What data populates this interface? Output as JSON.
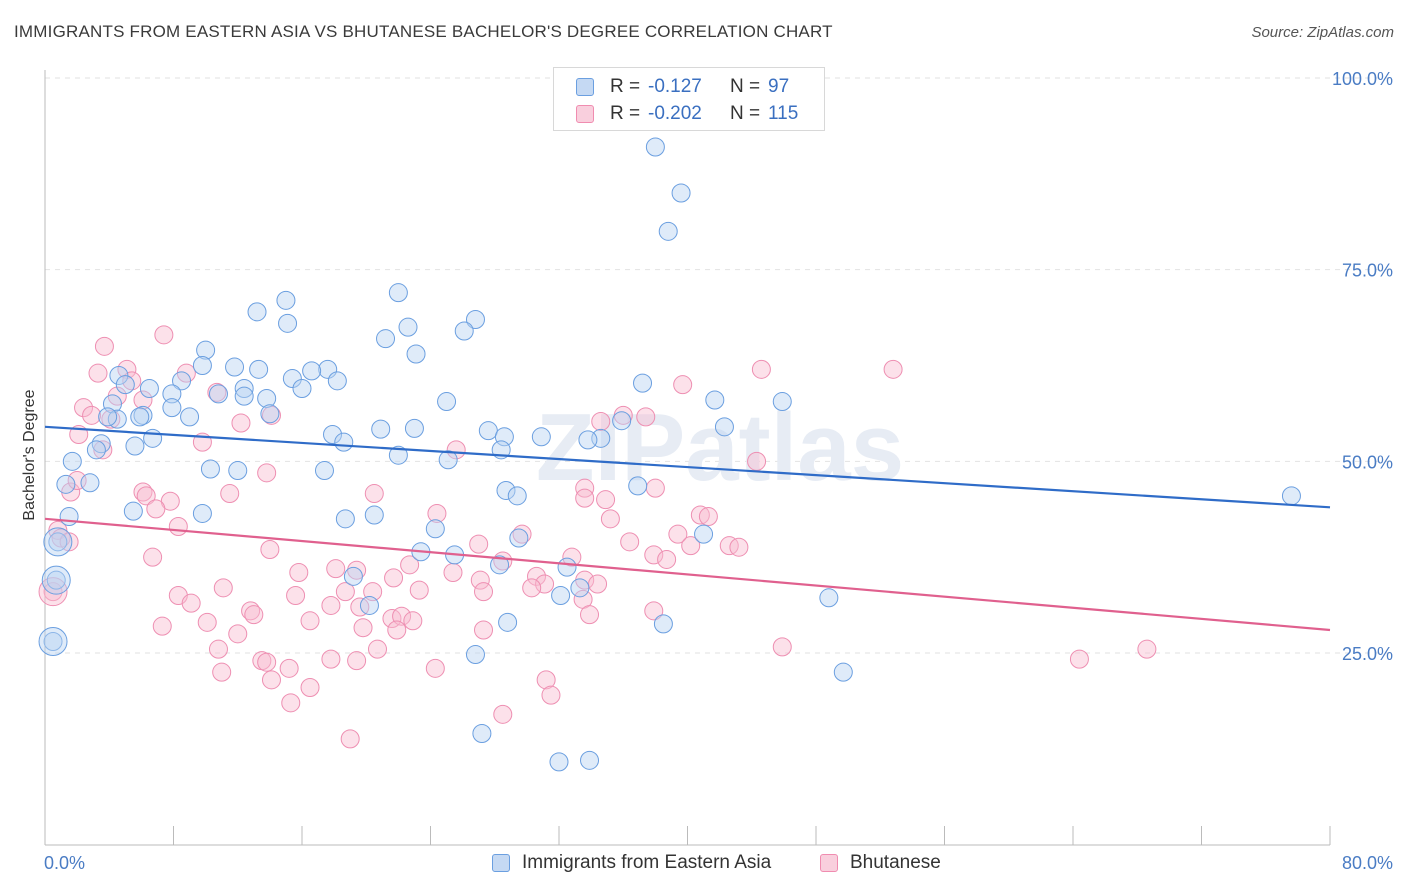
{
  "title": "IMMIGRANTS FROM EASTERN ASIA VS BHUTANESE BACHELOR'S DEGREE CORRELATION CHART",
  "source": "Source: ZipAtlas.com",
  "legend": {
    "rows": [
      {
        "r_label": "R =",
        "r_value": "-0.127",
        "n_label": "N =",
        "n_value": "97"
      },
      {
        "r_label": "R =",
        "r_value": "-0.202",
        "n_label": "N =",
        "n_value": "115"
      }
    ]
  },
  "chart_data": {
    "type": "scatter",
    "xlabel": "",
    "ylabel": "Bachelor's Degree",
    "xlim": [
      0,
      80
    ],
    "ylim": [
      0,
      105
    ],
    "x_tick_labels": [
      "0.0%",
      "80.0%"
    ],
    "y_ticks": [
      25,
      50,
      75,
      100
    ],
    "y_tick_labels": [
      "25.0%",
      "50.0%",
      "75.0%",
      "100.0%"
    ],
    "grid": true,
    "legend_placement": "bottom-center",
    "watermark": "ZIPatlas",
    "colors": {
      "series1": "#6b9fe0",
      "series1_line": "#2f6cc8",
      "series2": "#f08cb0",
      "series2_line": "#e0608e"
    },
    "series": [
      {
        "name": "Immigrants from Eastern Asia",
        "trend": [
          [
            0,
            54.5
          ],
          [
            80,
            44.0
          ]
        ],
        "points": [
          [
            38,
            91
          ],
          [
            39.6,
            85
          ],
          [
            38.8,
            80
          ],
          [
            22,
            72
          ],
          [
            15,
            71
          ],
          [
            13.2,
            69.5
          ],
          [
            26.8,
            68.5
          ],
          [
            15.1,
            68
          ],
          [
            22.6,
            67.5
          ],
          [
            26.1,
            67
          ],
          [
            21.2,
            66
          ],
          [
            10,
            64.5
          ],
          [
            23.1,
            64
          ],
          [
            9.8,
            62.5
          ],
          [
            11.8,
            62.3
          ],
          [
            13.3,
            62
          ],
          [
            17.6,
            62
          ],
          [
            16.6,
            61.8
          ],
          [
            4.6,
            61.2
          ],
          [
            15.4,
            60.8
          ],
          [
            8.5,
            60.5
          ],
          [
            18.2,
            60.5
          ],
          [
            37.2,
            60.2
          ],
          [
            5,
            60
          ],
          [
            12.4,
            59.5
          ],
          [
            16,
            59.5
          ],
          [
            6.5,
            59.5
          ],
          [
            10.8,
            58.8
          ],
          [
            7.9,
            58.8
          ],
          [
            13.8,
            58.2
          ],
          [
            12.4,
            58.5
          ],
          [
            4.2,
            57.5
          ],
          [
            45.9,
            57.8
          ],
          [
            25,
            57.8
          ],
          [
            7.9,
            57
          ],
          [
            14,
            56.2
          ],
          [
            6.1,
            56
          ],
          [
            5.9,
            55.8
          ],
          [
            9,
            55.8
          ],
          [
            4.5,
            55.5
          ],
          [
            3.9,
            55.8
          ],
          [
            42.3,
            54.5
          ],
          [
            20.9,
            54.2
          ],
          [
            23,
            54.3
          ],
          [
            27.6,
            54
          ],
          [
            17.9,
            53.5
          ],
          [
            30.9,
            53.2
          ],
          [
            28.6,
            53.2
          ],
          [
            34.6,
            53
          ],
          [
            6.7,
            53
          ],
          [
            18.6,
            52.5
          ],
          [
            3.5,
            52.3
          ],
          [
            5.6,
            52
          ],
          [
            3.2,
            51.5
          ],
          [
            28.4,
            51.5
          ],
          [
            22,
            50.8
          ],
          [
            25.1,
            50.2
          ],
          [
            1.7,
            50
          ],
          [
            10.3,
            49
          ],
          [
            12,
            48.8
          ],
          [
            17.4,
            48.8
          ],
          [
            1.3,
            47
          ],
          [
            2.8,
            47.2
          ],
          [
            36.9,
            46.8
          ],
          [
            28.7,
            46.2
          ],
          [
            29.4,
            45.5
          ],
          [
            5.5,
            43.5
          ],
          [
            9.8,
            43.2
          ],
          [
            20.5,
            43
          ],
          [
            18.7,
            42.5
          ],
          [
            1.5,
            42.8
          ],
          [
            24.3,
            41.2
          ],
          [
            41,
            40.5
          ],
          [
            29.5,
            40
          ],
          [
            0.8,
            39.5
          ],
          [
            23.4,
            38.2
          ],
          [
            25.5,
            37.8
          ],
          [
            32.5,
            36.2
          ],
          [
            28.3,
            36.5
          ],
          [
            19.2,
            35
          ],
          [
            33.3,
            33.5
          ],
          [
            0.7,
            34.5
          ],
          [
            32.1,
            32.5
          ],
          [
            48.8,
            32.2
          ],
          [
            20.2,
            31.2
          ],
          [
            28.8,
            29
          ],
          [
            38.5,
            28.8
          ],
          [
            0.5,
            26.5
          ],
          [
            26.8,
            24.8
          ],
          [
            49.7,
            22.5
          ],
          [
            27.2,
            14.5
          ],
          [
            32,
            10.8
          ],
          [
            33.9,
            11
          ],
          [
            41.7,
            58
          ],
          [
            35.9,
            55.3
          ],
          [
            77.6,
            45.5
          ],
          [
            33.8,
            52.8
          ]
        ],
        "sizes_note": "",
        "large_points": [
          [
            0.5,
            26.5
          ],
          [
            0.7,
            34.5
          ],
          [
            0.8,
            39.5
          ]
        ]
      },
      {
        "name": "Bhutanese",
        "trend": [
          [
            0,
            42.5
          ],
          [
            80,
            28.0
          ]
        ],
        "points": [
          [
            7.4,
            66.5
          ],
          [
            3.7,
            65
          ],
          [
            52.8,
            62
          ],
          [
            44.6,
            62
          ],
          [
            3.3,
            61.5
          ],
          [
            5.1,
            62
          ],
          [
            8.8,
            61.5
          ],
          [
            5.4,
            60.5
          ],
          [
            39.7,
            60
          ],
          [
            10.7,
            59
          ],
          [
            6.1,
            58
          ],
          [
            4.5,
            58.5
          ],
          [
            2.4,
            57
          ],
          [
            14.1,
            56
          ],
          [
            2.9,
            56
          ],
          [
            4.1,
            55.5
          ],
          [
            36,
            56
          ],
          [
            37.4,
            55.8
          ],
          [
            34.6,
            55.2
          ],
          [
            12.2,
            55
          ],
          [
            2.1,
            53.5
          ],
          [
            9.8,
            52.5
          ],
          [
            3.6,
            51.5
          ],
          [
            25.6,
            51.5
          ],
          [
            44.3,
            50
          ],
          [
            13.8,
            48.5
          ],
          [
            6.1,
            46
          ],
          [
            20.5,
            45.8
          ],
          [
            33.6,
            46.5
          ],
          [
            38,
            46.5
          ],
          [
            1.6,
            46
          ],
          [
            2,
            47.5
          ],
          [
            11.5,
            45.8
          ],
          [
            33.6,
            45.2
          ],
          [
            34.9,
            45
          ],
          [
            6.3,
            45.5
          ],
          [
            7.8,
            44.8
          ],
          [
            6.9,
            43.8
          ],
          [
            24.4,
            43.2
          ],
          [
            40.8,
            43
          ],
          [
            41.3,
            42.8
          ],
          [
            35.2,
            42.5
          ],
          [
            8.3,
            41.5
          ],
          [
            0.8,
            41
          ],
          [
            1,
            40
          ],
          [
            29.7,
            40.5
          ],
          [
            39.4,
            40.5
          ],
          [
            36.4,
            39.5
          ],
          [
            27,
            39.2
          ],
          [
            40.2,
            39
          ],
          [
            42.6,
            39
          ],
          [
            43.2,
            38.8
          ],
          [
            14,
            38.5
          ],
          [
            1.5,
            39.5
          ],
          [
            6.7,
            37.5
          ],
          [
            32.8,
            37.5
          ],
          [
            37.9,
            37.8
          ],
          [
            38.7,
            37.2
          ],
          [
            28.5,
            37
          ],
          [
            22.7,
            36.5
          ],
          [
            18.1,
            36
          ],
          [
            19.4,
            35.8
          ],
          [
            15.8,
            35.5
          ],
          [
            25.4,
            35.5
          ],
          [
            30.6,
            35
          ],
          [
            21.7,
            34.8
          ],
          [
            33.6,
            34.5
          ],
          [
            27.1,
            34.5
          ],
          [
            34.4,
            34
          ],
          [
            31.1,
            34
          ],
          [
            30.3,
            33.5
          ],
          [
            11.1,
            33.5
          ],
          [
            23.3,
            33.2
          ],
          [
            18.7,
            33
          ],
          [
            20.4,
            33
          ],
          [
            27.3,
            33
          ],
          [
            15.6,
            32.5
          ],
          [
            8.3,
            32.5
          ],
          [
            33.5,
            32
          ],
          [
            9.1,
            31.5
          ],
          [
            17.8,
            31.2
          ],
          [
            19.6,
            31
          ],
          [
            12.8,
            30.5
          ],
          [
            13,
            30
          ],
          [
            37.9,
            30.5
          ],
          [
            33.9,
            30
          ],
          [
            21.6,
            29.5
          ],
          [
            22.2,
            29.8
          ],
          [
            22.9,
            29.2
          ],
          [
            16.5,
            29.2
          ],
          [
            10.1,
            29
          ],
          [
            7.3,
            28.5
          ],
          [
            19.8,
            28.3
          ],
          [
            27.3,
            28
          ],
          [
            21.9,
            28
          ],
          [
            12,
            27.5
          ],
          [
            20.7,
            25.5
          ],
          [
            10.8,
            25.5
          ],
          [
            45.9,
            25.8
          ],
          [
            13.5,
            24
          ],
          [
            17.8,
            24.2
          ],
          [
            13.8,
            23.8
          ],
          [
            15.2,
            23
          ],
          [
            24.3,
            23
          ],
          [
            11,
            22.5
          ],
          [
            19.4,
            24
          ],
          [
            64.4,
            24.2
          ],
          [
            68.6,
            25.5
          ],
          [
            14.1,
            21.5
          ],
          [
            31.2,
            21.5
          ],
          [
            16.5,
            20.5
          ],
          [
            15.3,
            18.5
          ],
          [
            31.5,
            19.5
          ],
          [
            28.5,
            17
          ],
          [
            19,
            13.8
          ],
          [
            0.5,
            33
          ]
        ],
        "large_points": [
          [
            0.5,
            33
          ]
        ]
      }
    ]
  },
  "bottom_legend": [
    "Immigrants from Eastern Asia",
    "Bhutanese"
  ]
}
